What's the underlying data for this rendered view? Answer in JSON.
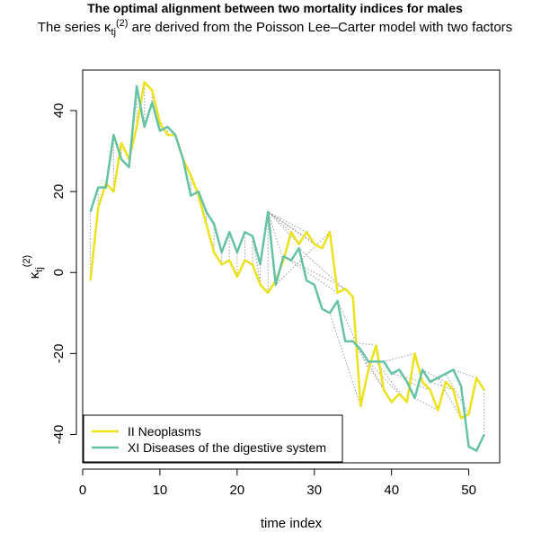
{
  "title": "The optimal alignment between two mortality indices for males",
  "subtitle": {
    "prefix": "The series",
    "kappa": "κ",
    "sub": "tj",
    "sup": "(2)",
    "suffix": "are derived from the Poisson Lee–Carter model with two factors"
  },
  "chart_data": {
    "type": "line",
    "xlabel": "time index",
    "ylabel": {
      "symbol": "κ",
      "sub": "tj",
      "sup": "(2)"
    },
    "xlim": [
      0,
      54
    ],
    "ylim": [
      -47,
      50
    ],
    "xticks": [
      0,
      10,
      20,
      30,
      40,
      50
    ],
    "yticks": [
      -40,
      -20,
      0,
      20,
      40
    ],
    "grid": false,
    "legend_position": "bottom-left",
    "x": [
      1,
      2,
      3,
      4,
      5,
      6,
      7,
      8,
      9,
      10,
      11,
      12,
      13,
      14,
      15,
      16,
      17,
      18,
      19,
      20,
      21,
      22,
      23,
      24,
      25,
      26,
      27,
      28,
      29,
      30,
      31,
      32,
      33,
      34,
      35,
      36,
      37,
      38,
      39,
      40,
      41,
      42,
      43,
      44,
      45,
      46,
      47,
      48,
      49,
      50,
      51,
      52
    ],
    "series": [
      {
        "name": "II Neoplasms",
        "color": "#ebe21c",
        "values": [
          -2,
          16,
          22,
          20,
          32,
          28,
          36,
          47,
          45,
          37,
          34,
          34,
          28,
          24,
          19,
          12,
          5,
          2,
          3,
          -1,
          3,
          2,
          -3,
          -5,
          -2,
          3,
          10,
          7,
          10,
          7,
          6,
          10,
          -5,
          -4,
          -6,
          -33,
          -24,
          -18,
          -29,
          -32,
          -30,
          -32,
          -20,
          -27,
          -29,
          -34,
          -27,
          -29,
          -36,
          -35,
          -26,
          -29
        ]
      },
      {
        "name": "XI Diseases of the digestive system",
        "color": "#66c2a5",
        "values": [
          15,
          21,
          21,
          34,
          28,
          26,
          46,
          36,
          42,
          35,
          36,
          34,
          28,
          19,
          20,
          15,
          12,
          5,
          10,
          5,
          10,
          9,
          2,
          15,
          -3,
          4,
          3,
          6,
          -2,
          -3,
          -9,
          -10,
          -7,
          -17,
          -17,
          -19,
          -22,
          -22,
          -22,
          -25,
          -24,
          -27,
          -31,
          -24,
          -27,
          -26,
          -25,
          -24,
          -28,
          -43,
          -44,
          -40
        ]
      }
    ],
    "alignment_pairs": [
      [
        1,
        1
      ],
      [
        2,
        2
      ],
      [
        3,
        3
      ],
      [
        4,
        4
      ],
      [
        5,
        5
      ],
      [
        6,
        6
      ],
      [
        7,
        7
      ],
      [
        8,
        8
      ],
      [
        9,
        9
      ],
      [
        10,
        10
      ],
      [
        11,
        11
      ],
      [
        12,
        12
      ],
      [
        13,
        13
      ],
      [
        14,
        14
      ],
      [
        15,
        15
      ],
      [
        16,
        16
      ],
      [
        17,
        17
      ],
      [
        18,
        18
      ],
      [
        19,
        19
      ],
      [
        20,
        20
      ],
      [
        21,
        21
      ],
      [
        22,
        22
      ],
      [
        23,
        22
      ],
      [
        23,
        23
      ],
      [
        24,
        24
      ],
      [
        25,
        24
      ],
      [
        26,
        24
      ],
      [
        27,
        24
      ],
      [
        28,
        24
      ],
      [
        29,
        24
      ],
      [
        30,
        24
      ],
      [
        31,
        24
      ],
      [
        32,
        25
      ],
      [
        33,
        26
      ],
      [
        34,
        27
      ],
      [
        35,
        28
      ],
      [
        36,
        32
      ],
      [
        37,
        33
      ],
      [
        38,
        34
      ],
      [
        39,
        35
      ],
      [
        40,
        36
      ],
      [
        41,
        37
      ],
      [
        42,
        38
      ],
      [
        43,
        39
      ],
      [
        44,
        40
      ],
      [
        45,
        42
      ],
      [
        46,
        43
      ],
      [
        47,
        44
      ],
      [
        48,
        45
      ],
      [
        49,
        46
      ],
      [
        50,
        47
      ],
      [
        51,
        48
      ],
      [
        52,
        52
      ]
    ]
  }
}
